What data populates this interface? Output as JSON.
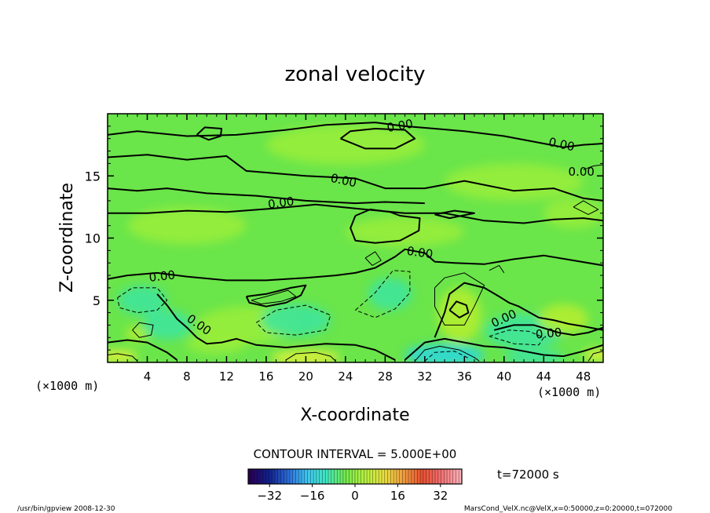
{
  "chart_data": {
    "type": "heatmap",
    "title": "zonal velocity",
    "xlabel": "X-coordinate",
    "ylabel": "Z-coordinate",
    "x_unit": "(×1000 m)",
    "y_unit": "(×1000 m)",
    "xlim": [
      0,
      50
    ],
    "ylim": [
      0,
      20
    ],
    "xticks": [
      4,
      8,
      12,
      16,
      20,
      24,
      28,
      32,
      36,
      40,
      44,
      48
    ],
    "yticks": [
      5,
      10,
      15
    ],
    "contour_interval_label": "CONTOUR INTERVAL = 5.000E+00",
    "contour_label": "0.00",
    "time_label": "t=72000 s",
    "colorbar": {
      "ticks": [
        -32,
        -16,
        0,
        16,
        32
      ],
      "range": [
        -40,
        40
      ],
      "colors": [
        "#2a0058",
        "#10208c",
        "#2c6ad8",
        "#3fc6f0",
        "#40e8c0",
        "#74e84c",
        "#b4f040",
        "#e8e040",
        "#f0a040",
        "#e85030",
        "#f07070",
        "#ffb0b8"
      ]
    },
    "field_colors": {
      "background": "#6ae54a",
      "light": "#9aee3a",
      "teal": "#3ce5a0",
      "cyan": "#2ad8e0",
      "yellow": "#e8f038",
      "olive": "#b6ee30"
    },
    "footer_left": "/usr/bin/gpview   2008-12-30",
    "footer_right": "MarsCond_VelX.nc@VelX,x=0:50000,z=0:20000,t=072000"
  }
}
